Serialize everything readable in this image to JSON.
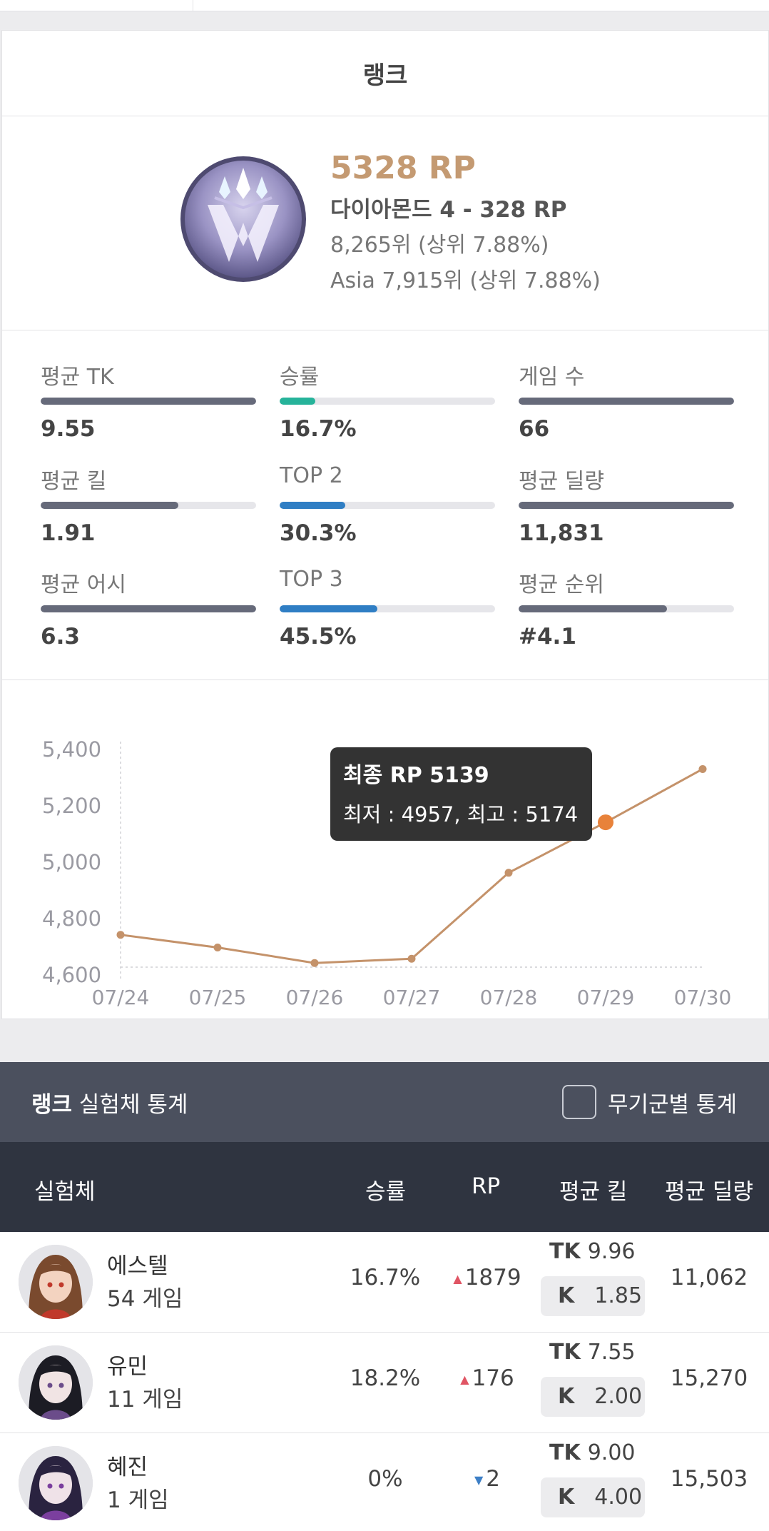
{
  "card_title": "랭크",
  "tier": {
    "rp": "5328 RP",
    "name": "다이아몬드 4 - 328 RP",
    "global_rank": "8,265위 (상위 7.88%)",
    "region_rank": "Asia 7,915위 (상위 7.88%)"
  },
  "stats": [
    {
      "label": "평균 TK",
      "value": "9.55",
      "fill": 1.0,
      "color": "#666a7a"
    },
    {
      "label": "승률",
      "value": "16.7%",
      "fill": 0.167,
      "color": "#26b39a"
    },
    {
      "label": "게임 수",
      "value": "66",
      "fill": 1.0,
      "color": "#666a7a"
    },
    {
      "label": "평균 킬",
      "value": "1.91",
      "fill": 0.64,
      "color": "#666a7a"
    },
    {
      "label": "TOP 2",
      "value": "30.3%",
      "fill": 0.303,
      "color": "#2f7ec4"
    },
    {
      "label": "평균 딜량",
      "value": "11,831",
      "fill": 1.0,
      "color": "#666a7a"
    },
    {
      "label": "평균 어시",
      "value": "6.3",
      "fill": 1.0,
      "color": "#666a7a"
    },
    {
      "label": "TOP 3",
      "value": "45.5%",
      "fill": 0.455,
      "color": "#2f7ec4"
    },
    {
      "label": "평균 순위",
      "value": "#4.1",
      "fill": 0.69,
      "color": "#666a7a"
    }
  ],
  "chart_data": {
    "type": "line",
    "categories": [
      "07/24",
      "07/25",
      "07/26",
      "07/27",
      "07/28",
      "07/29",
      "07/30"
    ],
    "values": [
      4740,
      4695,
      4640,
      4655,
      4960,
      5139,
      5328
    ],
    "ylim": [
      4600,
      5400
    ],
    "yticks": [
      "5,400",
      "5,200",
      "5,000",
      "4,800",
      "4,600"
    ],
    "ytick_values": [
      5400,
      5200,
      5000,
      4800,
      4600
    ],
    "highlight_index": 5,
    "line_color": "#c4926a",
    "highlight_color": "#e8823a"
  },
  "tooltip": {
    "title": "최종 RP 5139",
    "detail": "최저 : 4957, 최고 : 5174"
  },
  "character_stats": {
    "title_bold": "랭크",
    "title_rest": " 실험체 통계",
    "toggle_label": "무기군별 통계",
    "columns": [
      "실험체",
      "승률",
      "RP",
      "평균 킬",
      "평균 딜량"
    ],
    "rows": [
      {
        "name": "에스텔",
        "games": "54 게임",
        "win": "16.7%",
        "rp_dir": "up",
        "rp": "1879",
        "tk_label": "TK",
        "tk": "9.96",
        "k_label": "K",
        "k": "1.85",
        "dmg": "11,062"
      },
      {
        "name": "유민",
        "games": "11 게임",
        "win": "18.2%",
        "rp_dir": "up",
        "rp": "176",
        "tk_label": "TK",
        "tk": "7.55",
        "k_label": "K",
        "k": "2.00",
        "dmg": "15,270"
      },
      {
        "name": "혜진",
        "games": "1 게임",
        "win": "0%",
        "rp_dir": "down",
        "rp": "2",
        "tk_label": "TK",
        "tk": "9.00",
        "k_label": "K",
        "k": "4.00",
        "dmg": "15,503"
      }
    ]
  }
}
